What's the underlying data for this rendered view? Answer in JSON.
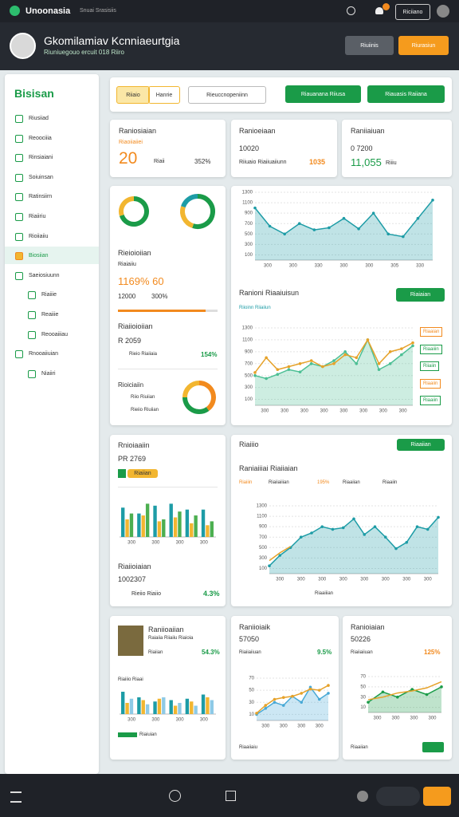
{
  "topbar": {
    "brand": "Unoonasia",
    "nav": "Snuai Srasisiis",
    "button": "Riciiano"
  },
  "header": {
    "title": "Gkomilamiav Kcnniaeurtgia",
    "subtitle": "Riuniuegouo ercuit 018 Riiro",
    "buttons": [
      "Riuiinis",
      "Riurasiun"
    ]
  },
  "sidebar": {
    "brand": "Bisisan",
    "active": 7,
    "items": [
      {
        "label": "Riusiiad"
      },
      {
        "label": "Reoociiia"
      },
      {
        "label": "Rinsiaiani"
      },
      {
        "label": "Soiuinsan"
      },
      {
        "label": "Ratinsiirn"
      },
      {
        "label": "Riaiiriu"
      },
      {
        "label": "Rioiiaiiu"
      },
      {
        "label": "Biosiian"
      },
      {
        "label": "Saeiosiuunn"
      },
      {
        "label": "Riaiiie",
        "sub": true
      },
      {
        "label": "Reaiiie",
        "sub": true
      },
      {
        "label": "Reooaiiiau",
        "sub": true
      },
      {
        "label": "Rnooaiiuian"
      },
      {
        "label": "Niaiiri",
        "sub": true
      }
    ]
  },
  "toolbar": {
    "tabs": [
      "Riiaio",
      "Hanrie"
    ],
    "search": "Rieuccnopeniinn",
    "buttons": [
      "Riauanana Riiusa",
      "Riauasis Raiiana"
    ]
  },
  "stats": [
    {
      "title": "Raniosiaian",
      "sub": "Riaoiiaiiei",
      "value": "20",
      "note": "Riaii",
      "pct": "352%"
    },
    {
      "title": "Ranioeiaan",
      "sub": "10020",
      "note": "Riiuaio Riaiiuaiiunn",
      "pct": "1035"
    },
    {
      "title": "Raniiaiuan",
      "sub": "0 7200",
      "value": "11,055",
      "note": "Riiiu"
    }
  ],
  "left": {
    "title": "Rieioioiian",
    "sub": "Riaiaiiu",
    "value": "1169% 60",
    "line1": "12000",
    "line2": "300%",
    "progress": 88,
    "title2": "Riaiioioiian",
    "value2": "R 2059",
    "note2": "Rieio Riaiiaia",
    "pct2": "154%",
    "title3": "Rioiciaiin",
    "legend3": [
      "Riio Riuiian",
      "Rieiio Riuiian"
    ]
  },
  "right": {
    "title": "Ranioni Riaaiuisun",
    "sub": "Riioinn  Riiaiiun",
    "button": "Riaiaian",
    "side": [
      "Riaaian",
      "Riaaiiin",
      "Riiaiin",
      "Riaaiin",
      "Riaaiin"
    ]
  },
  "row3left": {
    "title": "Rnioiaaiin",
    "sub": "PR 2769",
    "tag": "Riaiian",
    "title2": "Riaiioiaian",
    "value2": "1002307",
    "note2": "Rieiio Riaiio",
    "pct2": "4.3%"
  },
  "row3right": {
    "title": "Riaiiio",
    "button": "Riaaiian",
    "title2": "Raniaiiiai Riaiiaian",
    "legend": [
      "Riaiiin",
      "Riaiiaiiian",
      "195%",
      "Riaaiian",
      "Riaaiin"
    ],
    "foot": "Riaaiiian"
  },
  "row4": [
    {
      "title": "Raniioaiian",
      "sub": "Raiaiia Riiaiiu Riaioia",
      "note": "Riaiian",
      "pct": "54.3%",
      "foot": "Riaiiio Riaai",
      "foot2": "Riaiuian"
    },
    {
      "title": "Raniioiaik",
      "sub": "57050",
      "note": "Riaiiaiiuan",
      "pct": "9.5%",
      "foot": "Riaaiiaiu"
    },
    {
      "title": "Ranioiaian",
      "sub": "50226",
      "note": "Riaiiaiiuan",
      "pct": "125%",
      "foot": "Riaaiian"
    }
  ],
  "charts": [
    {
      "type": "donut",
      "values": [
        70,
        30
      ],
      "colors": [
        "#1a9b48",
        "#f2b630"
      ]
    },
    {
      "type": "donut",
      "values": [
        55,
        25,
        20
      ],
      "colors": [
        "#1a9b48",
        "#f2b630",
        "#1d9ca6"
      ]
    },
    {
      "type": "donut",
      "values": [
        40,
        35,
        25
      ],
      "colors": [
        "#f28a1e",
        "#1a9b48",
        "#f2b630"
      ]
    },
    {
      "type": "line",
      "ylim": [
        0,
        1300
      ],
      "yticks": [
        100,
        300,
        500,
        700,
        900,
        1100,
        1300
      ],
      "xlabels": [
        "300",
        "300",
        "330",
        "300",
        "300",
        "305",
        "330"
      ],
      "series": [
        {
          "color": "#1d9ca6",
          "area": true,
          "dots": true,
          "values": [
            1000,
            650,
            500,
            700,
            580,
            620,
            800,
            600,
            900,
            500,
            450,
            800,
            1150
          ]
        }
      ]
    },
    {
      "type": "line",
      "ylim": [
        0,
        1300
      ],
      "yticks": [
        100,
        300,
        500,
        700,
        900,
        1100,
        1300
      ],
      "xlabels": [
        "300",
        "300",
        "300",
        "300",
        "300",
        "300",
        "300",
        "300"
      ],
      "series": [
        {
          "color": "#4cbf94",
          "area": true,
          "dots": true,
          "values": [
            500,
            450,
            520,
            600,
            560,
            700,
            650,
            750,
            900,
            700,
            1100,
            600,
            700,
            850,
            1000
          ]
        },
        {
          "color": "#e6a22a",
          "dots": true,
          "values": [
            550,
            800,
            600,
            650,
            700,
            750,
            650,
            700,
            850,
            800,
            1100,
            700,
            900,
            950,
            1050
          ]
        }
      ]
    },
    {
      "type": "bar",
      "ylim": [
        0,
        100
      ],
      "xlabels": [
        "300",
        "300",
        "300",
        "300"
      ],
      "series": [
        {
          "color": "#1d9ca6",
          "values": [
            75,
            60,
            80,
            85,
            70,
            70
          ]
        },
        {
          "color": "#f2b630",
          "values": [
            45,
            55,
            40,
            50,
            35,
            30
          ]
        },
        {
          "color": "#4caf50",
          "values": [
            60,
            85,
            45,
            65,
            55,
            40
          ]
        }
      ]
    },
    {
      "type": "line",
      "ylim": [
        0,
        1300
      ],
      "yticks": [
        100,
        300,
        500,
        700,
        900,
        1100,
        1300
      ],
      "xlabels": [
        "300",
        "300",
        "300",
        "300",
        "300",
        "300",
        "300",
        "300"
      ],
      "series": [
        {
          "color": "#1d9ca6",
          "area": true,
          "dots": true,
          "values": [
            150,
            350,
            500,
            700,
            780,
            900,
            850,
            880,
            1050,
            750,
            900,
            700,
            480,
            600,
            900,
            850,
            1080
          ]
        },
        {
          "color": "#e6a22a",
          "values": [
            250,
            400,
            520
          ]
        }
      ]
    },
    {
      "type": "bar",
      "ylim": [
        0,
        100
      ],
      "xlabels": [
        "300",
        "300",
        "300",
        "300"
      ],
      "series": [
        {
          "color": "#1d9ca6",
          "values": [
            80,
            60,
            45,
            50,
            55,
            70
          ]
        },
        {
          "color": "#f2b630",
          "values": [
            40,
            50,
            55,
            30,
            45,
            60
          ]
        },
        {
          "color": "#8ecae6",
          "values": [
            55,
            35,
            60,
            40,
            30,
            50
          ]
        }
      ]
    },
    {
      "type": "line",
      "ylim": [
        0,
        70
      ],
      "yticks": [
        10,
        30,
        50,
        70
      ],
      "xlabels": [
        "300",
        "300",
        "300",
        "300"
      ],
      "series": [
        {
          "color": "#48a9d6",
          "area": true,
          "dots": true,
          "values": [
            10,
            20,
            30,
            25,
            40,
            30,
            55,
            35,
            45
          ]
        },
        {
          "color": "#e6a22a",
          "dots": true,
          "values": [
            12,
            25,
            35,
            38,
            40,
            45,
            52,
            50,
            58
          ]
        }
      ]
    },
    {
      "type": "line",
      "ylim": [
        0,
        70
      ],
      "yticks": [
        10,
        30,
        50,
        70
      ],
      "xlabels": [
        "300",
        "300",
        "300",
        "300"
      ],
      "series": [
        {
          "color": "#1a9b48",
          "area": true,
          "dots": true,
          "values": [
            20,
            40,
            30,
            45,
            35,
            50
          ]
        },
        {
          "color": "#e6a22a",
          "values": [
            25,
            30,
            38,
            42,
            48,
            60
          ]
        }
      ]
    }
  ]
}
